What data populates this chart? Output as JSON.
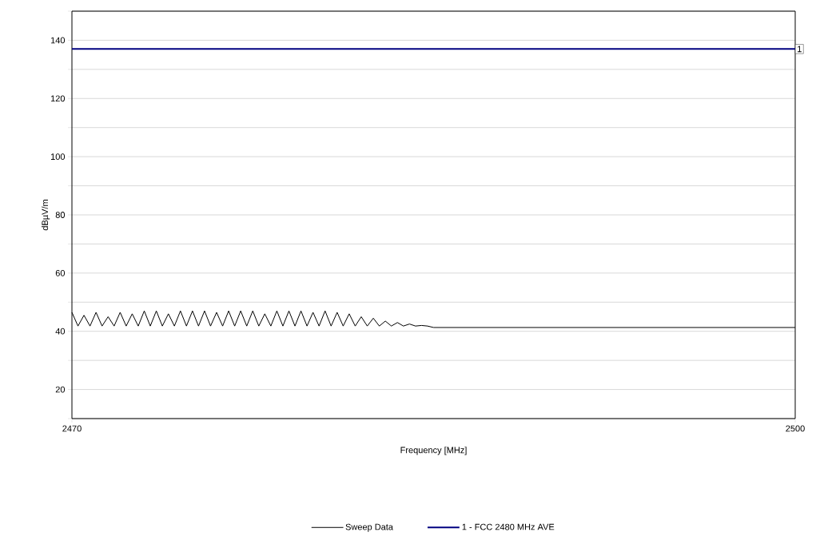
{
  "chart_data": {
    "type": "line",
    "xlabel": "Frequency [MHz]",
    "ylabel": "dBµV/m",
    "xlim": [
      2470,
      2500
    ],
    "xticks": [
      2470,
      2500
    ],
    "ylim": [
      10,
      150
    ],
    "yticks": [
      {
        "value": 10,
        "label": null
      },
      20,
      {
        "value": 30,
        "label": null
      },
      40,
      {
        "value": 50,
        "label": null
      },
      60,
      {
        "value": 70,
        "label": null
      },
      80,
      {
        "value": 90,
        "label": null
      },
      100,
      {
        "value": 110,
        "label": null
      },
      120,
      {
        "value": 130,
        "label": null
      },
      140,
      {
        "value": 150,
        "label": null
      }
    ],
    "grid": "y",
    "legend": "bottom",
    "marker": "none",
    "line_style": "solid",
    "series": [
      {
        "name": "Sweep Data",
        "color": "#000000",
        "x": [
          2470,
          2470.25,
          2470.5,
          2470.75,
          2471,
          2471.25,
          2471.5,
          2471.75,
          2472,
          2472.25,
          2472.5,
          2472.75,
          2473,
          2473.25,
          2473.5,
          2473.75,
          2474,
          2474.25,
          2474.5,
          2474.75,
          2475,
          2475.25,
          2475.5,
          2475.75,
          2476,
          2476.25,
          2476.5,
          2476.75,
          2477,
          2477.25,
          2477.5,
          2477.75,
          2478,
          2478.25,
          2478.5,
          2478.75,
          2479,
          2479.25,
          2479.5,
          2479.75,
          2480,
          2480.25,
          2480.5,
          2480.75,
          2481,
          2481.25,
          2481.5,
          2481.75,
          2482,
          2482.25,
          2482.5,
          2482.75,
          2483,
          2483.25,
          2483.5,
          2483.75,
          2484,
          2484.25,
          2484.5,
          2484.75,
          2485,
          2490,
          2495,
          2500
        ],
        "values": [
          46.5,
          41.8,
          45.5,
          41.8,
          46.5,
          41.8,
          45,
          41.8,
          46.5,
          41.8,
          46,
          41.8,
          47,
          41.8,
          47,
          41.8,
          46,
          41.8,
          47,
          41.8,
          47,
          41.8,
          47,
          41.8,
          46.5,
          41.8,
          47,
          41.8,
          47,
          41.8,
          47,
          41.8,
          46,
          41.8,
          47,
          41.8,
          47,
          41.8,
          47,
          41.8,
          46.5,
          41.8,
          47,
          41.8,
          46.5,
          41.8,
          46,
          41.8,
          45,
          41.8,
          44.5,
          41.8,
          43.5,
          41.8,
          43,
          41.8,
          42.5,
          41.8,
          42,
          41.8,
          41.3,
          41.3,
          41.3,
          41.3
        ]
      },
      {
        "name": "1 - FCC 2480 MHz  AVE",
        "color": "#000080",
        "x": [
          2470,
          2500
        ],
        "values": [
          137,
          137
        ]
      }
    ],
    "annotations": [
      {
        "text": "1",
        "x": 2500,
        "y": 137
      }
    ]
  }
}
